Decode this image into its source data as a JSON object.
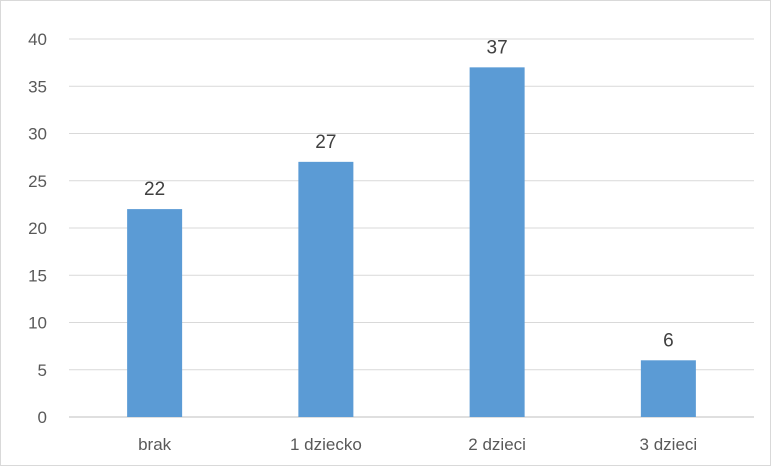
{
  "chart_data": {
    "type": "bar",
    "title": "",
    "xlabel": "",
    "ylabel": "",
    "categories": [
      "brak",
      "1 dziecko",
      "2 dzieci",
      "3 dzieci"
    ],
    "values": [
      22,
      27,
      37,
      6
    ],
    "data_labels": [
      "22",
      "27",
      "37",
      "6"
    ],
    "ylim": [
      0,
      40
    ],
    "yticks": [
      "0",
      "5",
      "10",
      "15",
      "20",
      "25",
      "30",
      "35",
      "40"
    ],
    "grid": true,
    "legend": "none",
    "colors": {
      "bar": "#5b9bd5",
      "grid": "#d9d9d9",
      "axis": "#bfbfbf"
    }
  }
}
